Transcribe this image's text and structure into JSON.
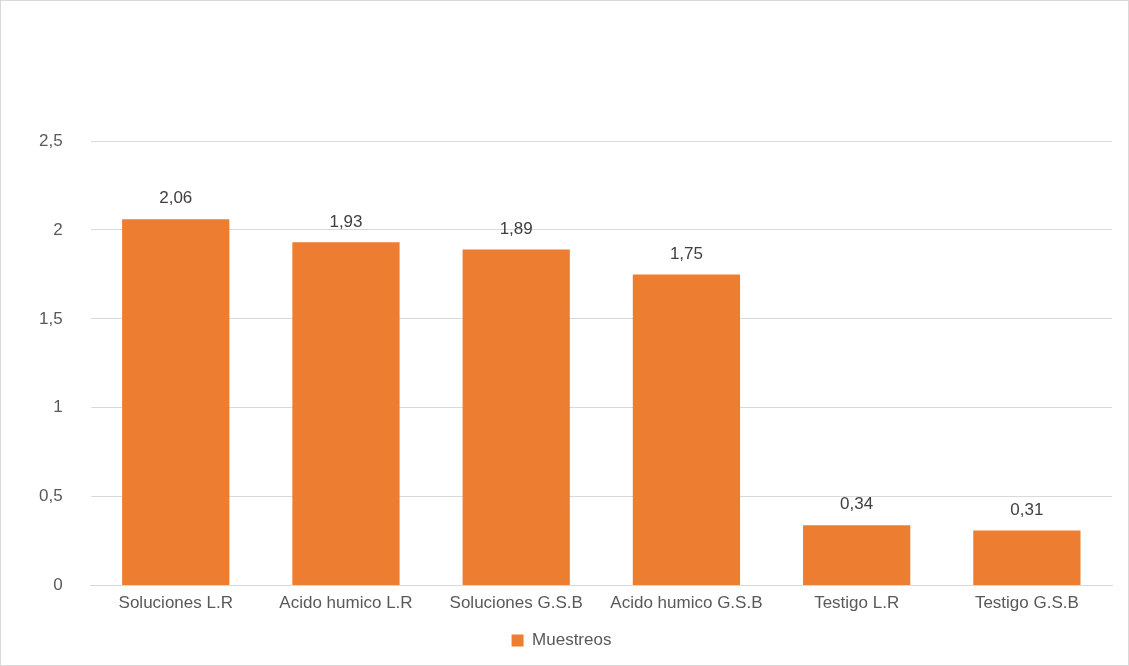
{
  "chart_data": {
    "type": "bar",
    "categories": [
      "Soluciones L.R",
      "Acido humico L.R",
      "Soluciones G.S.B",
      "Acido humico G.S.B",
      "Testigo L.R",
      "Testigo G.S.B"
    ],
    "series": [
      {
        "name": "Muestreos",
        "color": "#ed7d31",
        "values": [
          2.06,
          1.93,
          1.89,
          1.75,
          0.34,
          0.31
        ],
        "value_labels": [
          "2,06",
          "1,93",
          "1,89",
          "1,75",
          "0,34",
          "0,31"
        ]
      }
    ],
    "ylim": [
      0,
      2.5
    ],
    "yticks": [
      0,
      {
        "value": 0.5,
        "label": "0,5"
      },
      1,
      {
        "value": 1.5,
        "label": "1,5"
      },
      2,
      {
        "value": 2.5,
        "label": "2,5"
      }
    ],
    "grid": "y",
    "legend": "bottom"
  }
}
